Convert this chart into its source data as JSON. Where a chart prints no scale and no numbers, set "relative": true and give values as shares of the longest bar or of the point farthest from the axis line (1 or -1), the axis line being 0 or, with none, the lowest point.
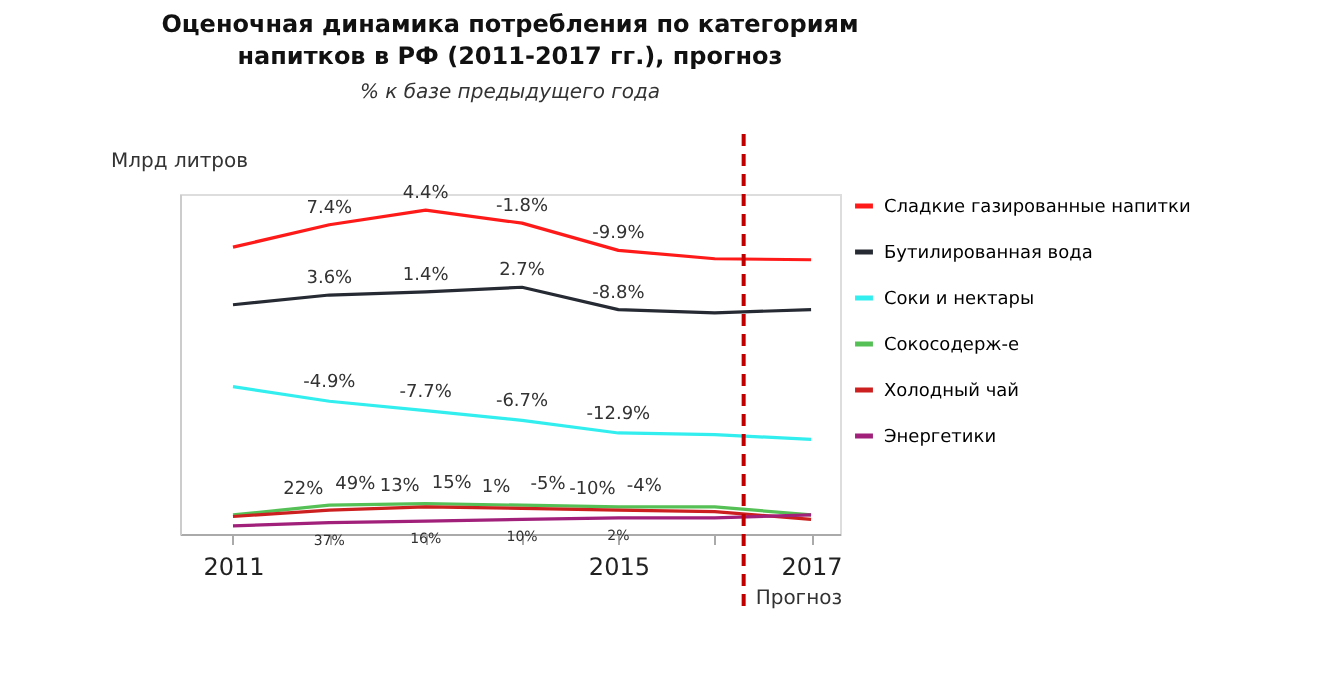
{
  "chart_data": {
    "type": "line",
    "title": "Оценочная динамика потребления по категориям напитков в РФ (2011-2017 гг.), прогноз",
    "subtitle": "% к базе предыдущего года",
    "ylabel": "Млрд литров",
    "relative": true,
    "x": [
      2011,
      2012,
      2013,
      2014,
      2015,
      2016,
      2017
    ],
    "xlim": [
      2010.45,
      2017.3
    ],
    "xticks": [
      2011,
      {
        "value": 2012,
        "label": null
      },
      {
        "value": 2013,
        "label": null
      },
      {
        "value": 2014,
        "label": null
      },
      2015,
      {
        "value": 2016,
        "label": null
      },
      2017
    ],
    "series": [
      {
        "name": "Сладкие газированные напитки",
        "color": "#ff1a1a",
        "values": [
          0.886,
          0.955,
          1.0,
          0.96,
          0.876,
          0.85,
          0.847
        ]
      },
      {
        "name": "Бутилированная вода",
        "color": "#262a33",
        "values": [
          0.708,
          0.738,
          0.748,
          0.762,
          0.693,
          0.683,
          0.693
        ]
      },
      {
        "name": "Соки и нектары",
        "color": "#33eeee",
        "values": [
          0.455,
          0.41,
          0.381,
          0.351,
          0.312,
          0.307,
          0.292
        ]
      },
      {
        "name": "Сокосодерж-е",
        "color": "#55c055",
        "values": [
          0.059,
          0.089,
          0.094,
          0.089,
          0.084,
          0.084,
          0.059
        ]
      },
      {
        "name": "Холодный чай",
        "color": "#cc1f1f",
        "values": [
          0.054,
          0.074,
          0.084,
          0.079,
          0.074,
          0.069,
          0.045
        ]
      },
      {
        "name": "Энергетики",
        "color": "#a0207a",
        "values": [
          0.025,
          0.035,
          0.04,
          0.045,
          0.05,
          0.05,
          0.059
        ]
      }
    ],
    "ref_lines": [
      {
        "axis": "x",
        "value": 2016.3,
        "label": "Прогноз",
        "color": "#c00000",
        "line_style": "dashed"
      }
    ],
    "annotations": [
      {
        "text": "7.4%",
        "x": 2012,
        "y": 0.955
      },
      {
        "text": "4.4%",
        "x": 2013,
        "y": 1.0
      },
      {
        "text": "-1.8%",
        "x": 2014,
        "y": 0.96
      },
      {
        "text": "-9.9%",
        "x": 2015,
        "y": 0.876
      },
      {
        "text": "3.6%",
        "x": 2012,
        "y": 0.738
      },
      {
        "text": "1.4%",
        "x": 2013,
        "y": 0.748
      },
      {
        "text": "2.7%",
        "x": 2014,
        "y": 0.762
      },
      {
        "text": "-8.8%",
        "x": 2015,
        "y": 0.693
      },
      {
        "text": "-4.9%",
        "x": 2012,
        "y": 0.41
      },
      {
        "text": "-7.7%",
        "x": 2013,
        "y": 0.381
      },
      {
        "text": "-6.7%",
        "x": 2014,
        "y": 0.351
      },
      {
        "text": "-12.9%",
        "x": 2015,
        "y": 0.312
      },
      {
        "text": "22%",
        "x": 2012,
        "y": 0.074
      },
      {
        "text": "13%",
        "x": 2013,
        "y": 0.084
      },
      {
        "text": "1%",
        "x": 2014,
        "y": 0.079
      },
      {
        "text": "-10%",
        "x": 2015,
        "y": 0.074
      },
      {
        "text": "49%",
        "x": 2012,
        "y": 0.089
      },
      {
        "text": "15%",
        "x": 2013,
        "y": 0.094
      },
      {
        "text": "-5%",
        "x": 2014,
        "y": 0.089
      },
      {
        "text": "-4%",
        "x": 2015,
        "y": 0.084
      },
      {
        "text": "37%",
        "x": 2012,
        "y": 0.035
      },
      {
        "text": "16%",
        "x": 2013,
        "y": 0.04
      },
      {
        "text": "10%",
        "x": 2014,
        "y": 0.045
      },
      {
        "text": "2%",
        "x": 2015,
        "y": 0.05
      }
    ],
    "legend": "right",
    "grid": false,
    "marker": "none",
    "line_style": "solid"
  }
}
